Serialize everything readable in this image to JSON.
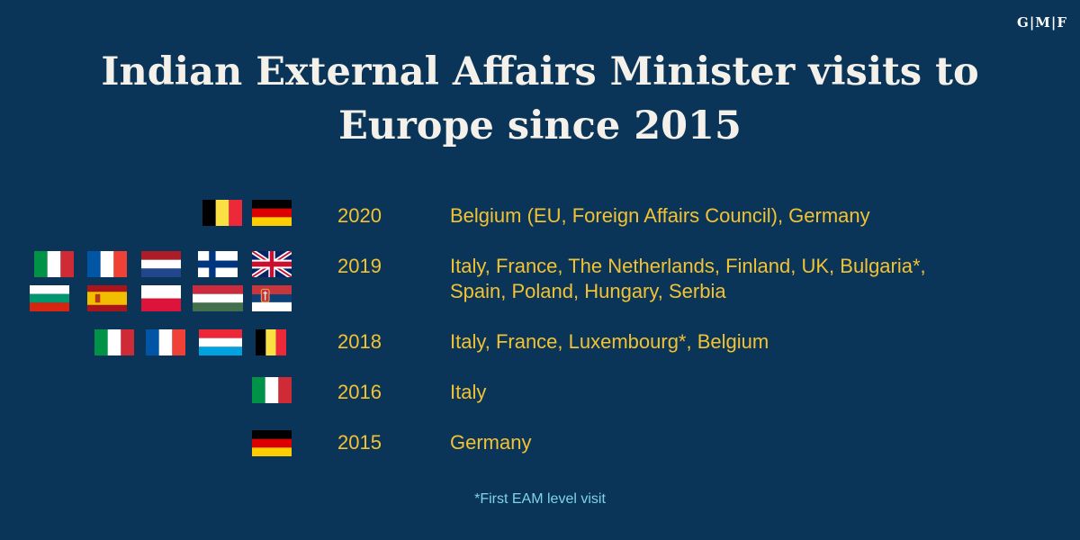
{
  "brand": "G|M|F",
  "title_line1": "Indian External Affairs Minister visits to",
  "title_line2": "Europe since 2015",
  "rows": [
    {
      "year": "2020",
      "countries": "Belgium (EU, Foreign Affairs Council), Germany"
    },
    {
      "year": "2019",
      "countries_line1": "Italy, France, The Netherlands, Finland, UK, Bulgaria*,",
      "countries_line2": "Spain, Poland, Hungary, Serbia"
    },
    {
      "year": "2018",
      "countries": "Italy, France, Luxembourg*, Belgium"
    },
    {
      "year": "2016",
      "countries": "Italy"
    },
    {
      "year": "2015",
      "countries": "Germany"
    }
  ],
  "footnote": "*First EAM level visit",
  "colors": {
    "background": "#0b3558",
    "accent": "#f2c232",
    "footnote": "#7fd3ea"
  },
  "flags": {
    "2020": [
      "belgium-flag",
      "germany-flag"
    ],
    "2019": [
      "italy-flag",
      "france-flag",
      "netherlands-flag",
      "finland-flag",
      "uk-flag",
      "bulgaria-flag",
      "spain-flag",
      "poland-flag",
      "hungary-flag",
      "serbia-flag"
    ],
    "2018": [
      "italy-flag",
      "france-flag",
      "luxembourg-flag",
      "belgium-flag"
    ],
    "2016": [
      "italy-flag"
    ],
    "2015": [
      "germany-flag"
    ]
  }
}
